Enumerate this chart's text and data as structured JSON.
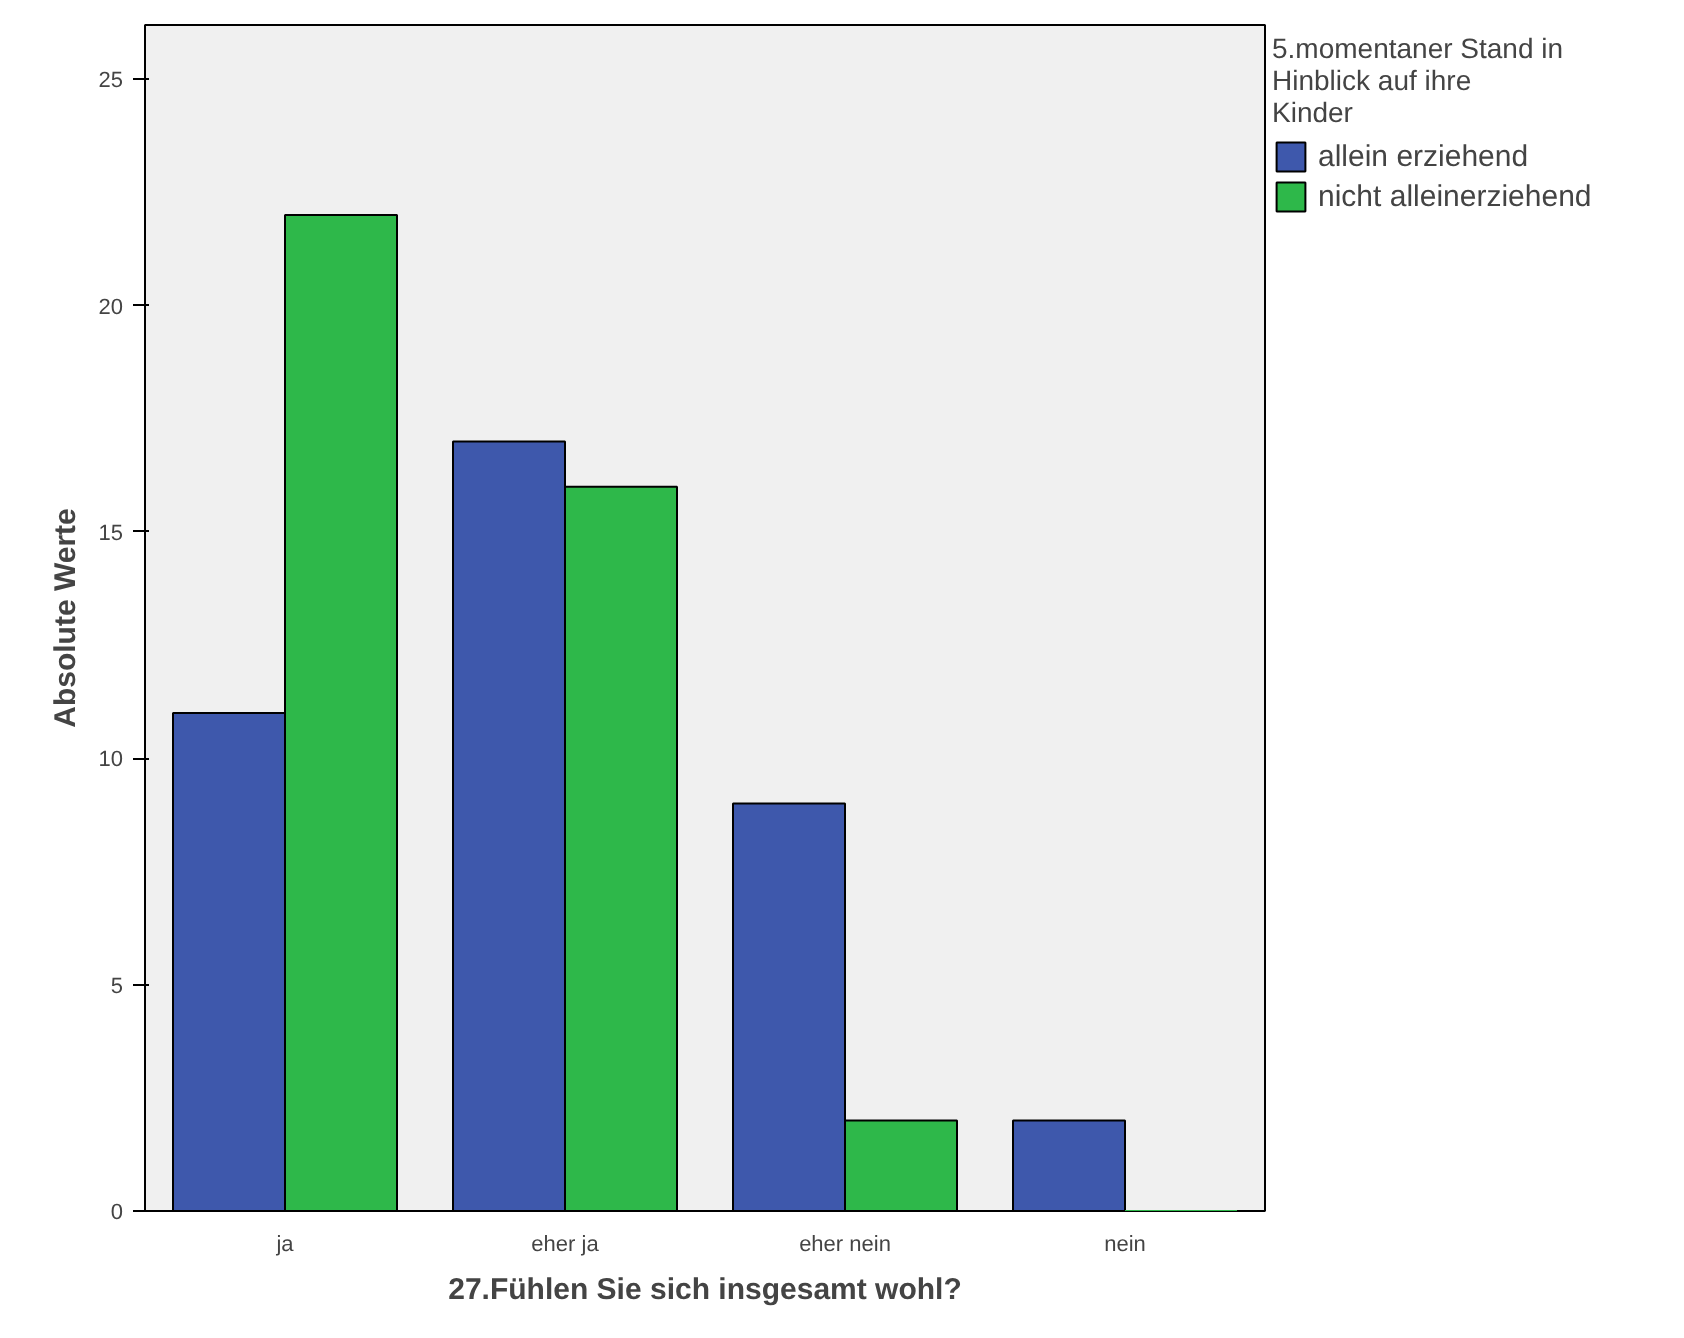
{
  "chart_data": {
    "type": "bar",
    "xlabel": "27.Fühlen Sie sich insgesamt wohl?",
    "ylabel": "Absolute Werte",
    "legend_title": "5.momentaner Stand in Hinblick auf ihre Kinder",
    "categories": [
      "ja",
      "eher ja",
      "eher nein",
      "nein"
    ],
    "series": [
      {
        "name": "allein erziehend",
        "color": "#3e58ac",
        "values": [
          11,
          17,
          9,
          2
        ]
      },
      {
        "name": "nicht alleinerziehend",
        "color": "#2eb84a",
        "values": [
          22,
          16,
          2,
          0
        ]
      }
    ],
    "ylim": [
      0,
      26.2
    ],
    "yticks": [
      0,
      5,
      10,
      15,
      20,
      25
    ],
    "grid": false,
    "legend": "top right"
  }
}
